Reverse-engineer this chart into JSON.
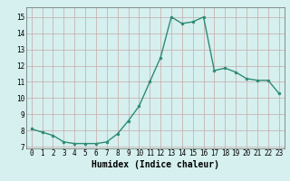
{
  "x": [
    0,
    1,
    2,
    3,
    4,
    5,
    6,
    7,
    8,
    9,
    10,
    11,
    12,
    13,
    14,
    15,
    16,
    17,
    18,
    19,
    20,
    21,
    22,
    23
  ],
  "y": [
    8.1,
    7.9,
    7.7,
    7.3,
    7.2,
    7.2,
    7.2,
    7.3,
    7.8,
    8.6,
    9.5,
    11.0,
    12.5,
    15.0,
    14.6,
    14.7,
    15.0,
    11.7,
    11.85,
    11.6,
    11.2,
    11.1,
    11.1,
    10.3
  ],
  "line_color": "#2e8b74",
  "marker": "o",
  "markersize": 2.0,
  "linewidth": 1.0,
  "bg_color": "#d5f0ee",
  "grid_color": "#c8a8a8",
  "grid_major_color": "#c09090",
  "xlabel": "Humidex (Indice chaleur)",
  "xlim": [
    -0.5,
    23.5
  ],
  "ylim": [
    6.9,
    15.6
  ],
  "yticks": [
    7,
    8,
    9,
    10,
    11,
    12,
    13,
    14,
    15
  ],
  "xticks": [
    0,
    1,
    2,
    3,
    4,
    5,
    6,
    7,
    8,
    9,
    10,
    11,
    12,
    13,
    14,
    15,
    16,
    17,
    18,
    19,
    20,
    21,
    22,
    23
  ],
  "xtick_labels": [
    "0",
    "1",
    "2",
    "3",
    "4",
    "5",
    "6",
    "7",
    "8",
    "9",
    "10",
    "11",
    "12",
    "13",
    "14",
    "15",
    "16",
    "17",
    "18",
    "19",
    "20",
    "21",
    "22",
    "23"
  ],
  "tick_fontsize": 5.5,
  "label_fontsize": 7
}
